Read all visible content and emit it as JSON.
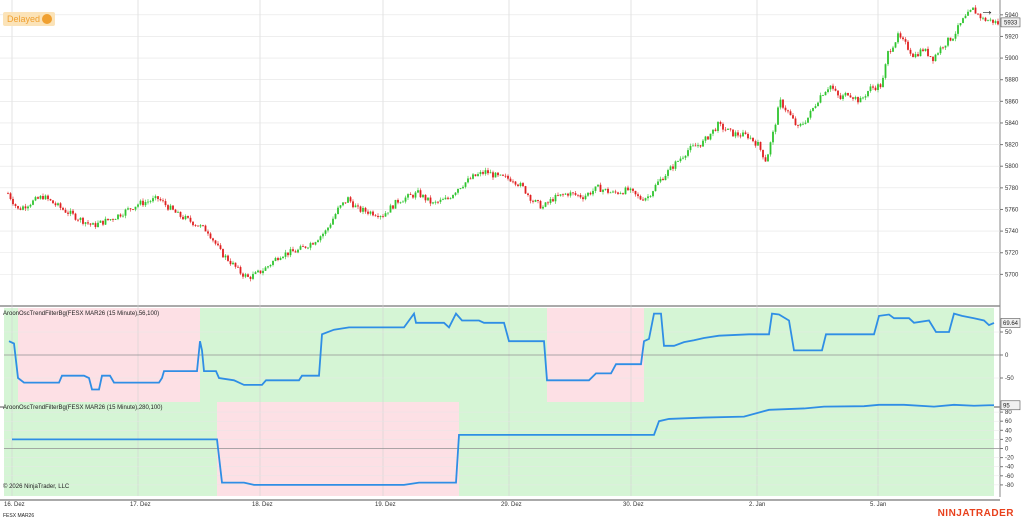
{
  "status": {
    "delayed_label": "Delayed"
  },
  "instrument": "FESX MAR26",
  "copyright": "© 2026 NinjaTrader, LLC",
  "brand": "NINJATRADER",
  "colors": {
    "up": "#2fc52f",
    "down": "#e02020",
    "line": "#2f8ee5",
    "bull_bg": "#d5f5d5",
    "bear_bg": "#fde0e5",
    "grid": "#d0d0d0"
  },
  "chart_data": [
    {
      "type": "candlestick",
      "title": "",
      "ylim": [
        5680,
        5950
      ],
      "yticks": [
        5700,
        5720,
        5740,
        5760,
        5780,
        5800,
        5820,
        5840,
        5860,
        5880,
        5900,
        5920,
        5940
      ],
      "last_price": 5933,
      "x_labels": [
        "16. Dez",
        "17. Dez",
        "18. Dez",
        "19. Dez",
        "29. Dez",
        "30. Dez",
        "2. Jan",
        "5. Jan"
      ],
      "close_path": [
        [
          0,
          5775
        ],
        [
          10,
          5760
        ],
        [
          20,
          5765
        ],
        [
          35,
          5772
        ],
        [
          55,
          5760
        ],
        [
          70,
          5752
        ],
        [
          85,
          5745
        ],
        [
          105,
          5752
        ],
        [
          130,
          5765
        ],
        [
          150,
          5770
        ],
        [
          170,
          5755
        ],
        [
          185,
          5748
        ],
        [
          200,
          5740
        ],
        [
          213,
          5720
        ],
        [
          222,
          5712
        ],
        [
          232,
          5702
        ],
        [
          240,
          5697
        ],
        [
          248,
          5700
        ],
        [
          258,
          5706
        ],
        [
          272,
          5718
        ],
        [
          290,
          5722
        ],
        [
          305,
          5730
        ],
        [
          318,
          5740
        ],
        [
          330,
          5760
        ],
        [
          340,
          5770
        ],
        [
          350,
          5760
        ],
        [
          360,
          5758
        ],
        [
          375,
          5755
        ],
        [
          390,
          5768
        ],
        [
          410,
          5775
        ],
        [
          425,
          5765
        ],
        [
          440,
          5770
        ],
        [
          450,
          5780
        ],
        [
          465,
          5790
        ],
        [
          478,
          5795
        ],
        [
          490,
          5790
        ],
        [
          505,
          5788
        ],
        [
          515,
          5780
        ],
        [
          525,
          5768
        ],
        [
          535,
          5762
        ],
        [
          545,
          5770
        ],
        [
          560,
          5775
        ],
        [
          575,
          5772
        ],
        [
          590,
          5780
        ],
        [
          605,
          5775
        ],
        [
          620,
          5778
        ],
        [
          632,
          5770
        ],
        [
          640,
          5772
        ],
        [
          650,
          5785
        ],
        [
          665,
          5800
        ],
        [
          680,
          5815
        ],
        [
          695,
          5822
        ],
        [
          710,
          5838
        ],
        [
          725,
          5830
        ],
        [
          740,
          5828
        ],
        [
          750,
          5820
        ],
        [
          758,
          5805
        ],
        [
          765,
          5830
        ],
        [
          772,
          5860
        ],
        [
          780,
          5850
        ],
        [
          790,
          5835
        ],
        [
          800,
          5845
        ],
        [
          812,
          5865
        ],
        [
          822,
          5875
        ],
        [
          832,
          5862
        ],
        [
          840,
          5868
        ],
        [
          852,
          5860
        ],
        [
          862,
          5872
        ],
        [
          874,
          5875
        ],
        [
          880,
          5905
        ],
        [
          890,
          5920
        ],
        [
          898,
          5912
        ],
        [
          906,
          5902
        ],
        [
          915,
          5908
        ],
        [
          925,
          5900
        ],
        [
          935,
          5912
        ],
        [
          945,
          5920
        ],
        [
          955,
          5935
        ],
        [
          965,
          5945
        ],
        [
          975,
          5936
        ],
        [
          985,
          5934
        ],
        [
          990,
          5932
        ]
      ]
    },
    {
      "type": "line",
      "title": "AroonOscTrendFilterBg(FESX MAR26 (15 Minute),56,100)",
      "ylim": [
        -100,
        100
      ],
      "yticks": [
        -50,
        0,
        50
      ],
      "last_value": 69.64,
      "regions": [
        {
          "from": 0,
          "to": 14,
          "state": "bull"
        },
        {
          "from": 14,
          "to": 196,
          "state": "bear"
        },
        {
          "from": 196,
          "to": 318,
          "state": "bull"
        },
        {
          "from": 318,
          "to": 543,
          "state": "bull"
        },
        {
          "from": 543,
          "to": 640,
          "state": "bear"
        },
        {
          "from": 640,
          "to": 990,
          "state": "bull"
        }
      ],
      "values": [
        [
          5,
          30
        ],
        [
          10,
          25
        ],
        [
          14,
          -50
        ],
        [
          20,
          -60
        ],
        [
          35,
          -60
        ],
        [
          55,
          -60
        ],
        [
          58,
          -45
        ],
        [
          80,
          -45
        ],
        [
          85,
          -50
        ],
        [
          88,
          -75
        ],
        [
          95,
          -75
        ],
        [
          98,
          -45
        ],
        [
          106,
          -45
        ],
        [
          110,
          -60
        ],
        [
          155,
          -60
        ],
        [
          158,
          -50
        ],
        [
          160,
          -35
        ],
        [
          193,
          -35
        ],
        [
          196,
          30
        ],
        [
          198,
          10
        ],
        [
          200,
          -35
        ],
        [
          212,
          -35
        ],
        [
          215,
          -50
        ],
        [
          230,
          -55
        ],
        [
          240,
          -65
        ],
        [
          258,
          -65
        ],
        [
          262,
          -55
        ],
        [
          295,
          -55
        ],
        [
          298,
          -45
        ],
        [
          315,
          -45
        ],
        [
          318,
          45
        ],
        [
          330,
          55
        ],
        [
          345,
          60
        ],
        [
          365,
          60
        ],
        [
          400,
          60
        ],
        [
          405,
          75
        ],
        [
          410,
          90
        ],
        [
          412,
          70
        ],
        [
          440,
          70
        ],
        [
          445,
          60
        ],
        [
          452,
          90
        ],
        [
          458,
          75
        ],
        [
          475,
          75
        ],
        [
          480,
          70
        ],
        [
          500,
          70
        ],
        [
          505,
          30
        ],
        [
          540,
          30
        ],
        [
          543,
          -55
        ],
        [
          585,
          -55
        ],
        [
          592,
          -40
        ],
        [
          607,
          -40
        ],
        [
          612,
          -20
        ],
        [
          637,
          -20
        ],
        [
          640,
          30
        ],
        [
          645,
          35
        ],
        [
          650,
          90
        ],
        [
          657,
          90
        ],
        [
          660,
          20
        ],
        [
          670,
          20
        ],
        [
          680,
          28
        ],
        [
          690,
          32
        ],
        [
          700,
          37
        ],
        [
          715,
          42
        ],
        [
          745,
          45
        ],
        [
          765,
          45
        ],
        [
          768,
          90
        ],
        [
          775,
          88
        ],
        [
          785,
          75
        ],
        [
          790,
          10
        ],
        [
          818,
          10
        ],
        [
          822,
          45
        ],
        [
          870,
          45
        ],
        [
          875,
          85
        ],
        [
          885,
          88
        ],
        [
          890,
          80
        ],
        [
          905,
          80
        ],
        [
          910,
          70
        ],
        [
          925,
          75
        ],
        [
          932,
          50
        ],
        [
          945,
          50
        ],
        [
          950,
          90
        ],
        [
          958,
          85
        ],
        [
          970,
          80
        ],
        [
          980,
          75
        ],
        [
          985,
          65
        ],
        [
          990,
          69.64
        ]
      ]
    },
    {
      "type": "line",
      "title": "AroonOscTrendFilterBg(FESX MAR26 (15 Minute),280,100)",
      "ylim": [
        -100,
        100
      ],
      "yticks": [
        -80,
        -60,
        -40,
        -20,
        0,
        20,
        40,
        60,
        80
      ],
      "last_value": 95,
      "regions": [
        {
          "from": 0,
          "to": 213,
          "state": "bull"
        },
        {
          "from": 213,
          "to": 455,
          "state": "bear"
        },
        {
          "from": 455,
          "to": 990,
          "state": "bull"
        }
      ],
      "values": [
        [
          8,
          20
        ],
        [
          213,
          20
        ],
        [
          218,
          -75
        ],
        [
          240,
          -75
        ],
        [
          250,
          -80
        ],
        [
          300,
          -80
        ],
        [
          350,
          -80
        ],
        [
          400,
          -80
        ],
        [
          415,
          -75
        ],
        [
          452,
          -75
        ],
        [
          455,
          30
        ],
        [
          650,
          30
        ],
        [
          655,
          60
        ],
        [
          665,
          65
        ],
        [
          700,
          68
        ],
        [
          740,
          70
        ],
        [
          765,
          85
        ],
        [
          800,
          88
        ],
        [
          820,
          92
        ],
        [
          860,
          93
        ],
        [
          875,
          96
        ],
        [
          900,
          96
        ],
        [
          930,
          92
        ],
        [
          950,
          96
        ],
        [
          970,
          94
        ],
        [
          985,
          95
        ],
        [
          990,
          95
        ]
      ]
    }
  ]
}
